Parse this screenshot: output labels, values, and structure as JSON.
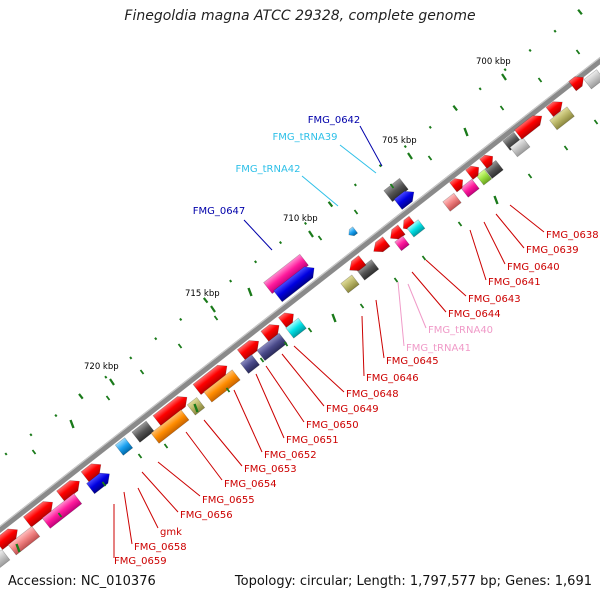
{
  "title": "Finegoldia magna ATCC 29328, complete genome",
  "footer": {
    "accession": "Accession: NC_010376",
    "topology": "Topology: circular; Length: 1,797,577 bp; Genes: 1,691"
  },
  "scale_labels": [
    {
      "label": "700 kbp"
    },
    {
      "label": "705 kbp"
    },
    {
      "label": "710 kbp"
    },
    {
      "label": "715 kbp"
    },
    {
      "label": "720 kbp"
    }
  ],
  "colors": {
    "cds": "#ff0000",
    "trna_blue": "#2ec0e8",
    "trna_pink": "#f09ac8",
    "gene_blue": "#0000cc",
    "backbone": "#808080",
    "tick": "#1a7a1a"
  },
  "gene_labels": [
    {
      "name": "FMG_0642",
      "color": "#0000aa"
    },
    {
      "name": "FMG_tRNA39",
      "color": "#2ec0e8"
    },
    {
      "name": "FMG_tRNA42",
      "color": "#2ec0e8"
    },
    {
      "name": "FMG_0647",
      "color": "#0000aa"
    },
    {
      "name": "FMG_0638",
      "color": "#cc0000"
    },
    {
      "name": "FMG_0639",
      "color": "#cc0000"
    },
    {
      "name": "FMG_0640",
      "color": "#cc0000"
    },
    {
      "name": "FMG_0641",
      "color": "#cc0000"
    },
    {
      "name": "FMG_0643",
      "color": "#cc0000"
    },
    {
      "name": "FMG_0644",
      "color": "#cc0000"
    },
    {
      "name": "FMG_tRNA40",
      "color": "#f09ac8"
    },
    {
      "name": "FMG_tRNA41",
      "color": "#f09ac8"
    },
    {
      "name": "FMG_0645",
      "color": "#cc0000"
    },
    {
      "name": "FMG_0646",
      "color": "#cc0000"
    },
    {
      "name": "FMG_0648",
      "color": "#cc0000"
    },
    {
      "name": "FMG_0649",
      "color": "#cc0000"
    },
    {
      "name": "FMG_0650",
      "color": "#cc0000"
    },
    {
      "name": "FMG_0651",
      "color": "#cc0000"
    },
    {
      "name": "FMG_0652",
      "color": "#cc0000"
    },
    {
      "name": "FMG_0653",
      "color": "#cc0000"
    },
    {
      "name": "FMG_0654",
      "color": "#cc0000"
    },
    {
      "name": "FMG_0655",
      "color": "#cc0000"
    },
    {
      "name": "FMG_0656",
      "color": "#cc0000"
    },
    {
      "name": "gmk",
      "color": "#cc0000"
    },
    {
      "name": "FMG_0658",
      "color": "#cc0000"
    },
    {
      "name": "FMG_0659",
      "color": "#cc0000"
    }
  ]
}
